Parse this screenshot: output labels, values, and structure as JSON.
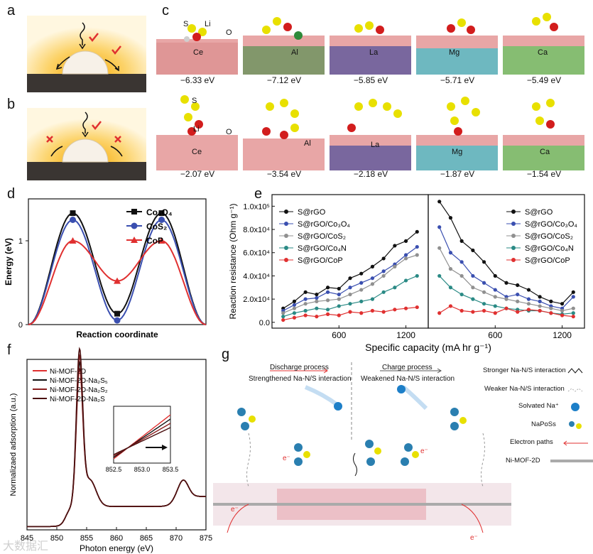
{
  "panels": {
    "a": {
      "letter": "a"
    },
    "b": {
      "letter": "b"
    },
    "c": {
      "letter": "c",
      "row1_labels": [
        "S",
        "Li",
        "O",
        "Ce",
        "Al",
        "La",
        "Mg",
        "Ca"
      ],
      "row1_energies": [
        "−6.33 eV",
        "−7.12 eV",
        "−5.85 eV",
        "−5.71 eV",
        "−5.49 eV"
      ],
      "row2_labels": [
        "S",
        "Li",
        "O",
        "Ce",
        "Al",
        "La",
        "Mg",
        "Ca"
      ],
      "row2_energies": [
        "−2.07 eV",
        "−3.54 eV",
        "−2.18 eV",
        "−1.87 eV",
        "−1.54 eV"
      ]
    },
    "d": {
      "letter": "d"
    },
    "e": {
      "letter": "e"
    },
    "f": {
      "letter": "f"
    },
    "g": {
      "letter": "g",
      "discharge_title": "Discharge process",
      "discharge_sub": "Strengthened Na-N/S interaction",
      "charge_title": "Charge process",
      "charge_sub": "Weakened Na-N/S interaction",
      "legend": [
        "Stronger Na-N/S interaction",
        "Weaker Na-N/S interaction",
        "Solvated Na⁺",
        "NaPoSs",
        "Electron paths",
        "Ni-MOF-2D"
      ],
      "electron": "e⁻"
    }
  },
  "watermark": "大数据汇",
  "chart_data": [
    {
      "id": "d",
      "type": "line",
      "title": "",
      "xlabel": "Reaction  coordinate",
      "ylabel": "Energy (eV)",
      "ylim": [
        0,
        1.5
      ],
      "yticks": [
        "0",
        "1"
      ],
      "legend_position": "top-right",
      "x": [
        0,
        0.25,
        0.5,
        0.75,
        1.0
      ],
      "series": [
        {
          "name": "Co₃O₄",
          "color": "#111111",
          "marker": "square",
          "values": [
            0,
            1.33,
            0.13,
            1.33,
            0
          ]
        },
        {
          "name": "CoS₂",
          "color": "#3a4fb0",
          "marker": "circle",
          "values": [
            0,
            1.25,
            0.05,
            1.25,
            0
          ]
        },
        {
          "name": "CoP",
          "color": "#e03030",
          "marker": "triangle",
          "values": [
            0,
            1.0,
            0.52,
            1.0,
            0
          ]
        }
      ]
    },
    {
      "id": "e-left",
      "type": "line",
      "xlabel": "Specific capacity (mA hr g⁻¹)",
      "ylabel": "Reaction resistance (Ohm g⁻¹)",
      "xlim": [
        0,
        1400
      ],
      "ylim": [
        -5000,
        110000
      ],
      "xticks": [
        "600",
        "1200"
      ],
      "yticks": [
        "0.0",
        "2.0x10⁴",
        "4.0x10⁴",
        "6.0x10⁴",
        "8.0x10⁴",
        "1.0x10⁵"
      ],
      "legend_position": "top-left",
      "x": [
        100,
        200,
        300,
        400,
        500,
        600,
        700,
        800,
        900,
        1000,
        1100,
        1200,
        1300
      ],
      "series": [
        {
          "name": "S@rGO",
          "color": "#111111",
          "values": [
            12000,
            18000,
            26000,
            24000,
            30000,
            29000,
            38000,
            42000,
            48000,
            55000,
            66000,
            70000,
            78000
          ]
        },
        {
          "name": "S@rGO/Co₃O₄",
          "color": "#3a4fb0",
          "values": [
            10000,
            15000,
            20000,
            21000,
            26000,
            24000,
            30000,
            34000,
            38000,
            44000,
            50000,
            58000,
            65000
          ]
        },
        {
          "name": "S@rGO/CoS₂",
          "color": "#909090",
          "values": [
            8000,
            12000,
            16000,
            18000,
            19000,
            20000,
            24000,
            28000,
            33000,
            40000,
            48000,
            55000,
            58000
          ]
        },
        {
          "name": "S@rGO/Co₄N",
          "color": "#2a8a85",
          "values": [
            5000,
            8000,
            10000,
            12000,
            11000,
            14000,
            16000,
            18000,
            20000,
            26000,
            30000,
            36000,
            40000
          ]
        },
        {
          "name": "S@rGO/CoP",
          "color": "#e03030",
          "values": [
            2000,
            4000,
            6000,
            5000,
            7000,
            6000,
            9000,
            8000,
            10000,
            9000,
            11000,
            12000,
            13000
          ]
        }
      ]
    },
    {
      "id": "e-right",
      "type": "line",
      "xlabel": "Specific capacity (mA hr g⁻¹)",
      "xlim": [
        0,
        1400
      ],
      "ylim": [
        -5000,
        110000
      ],
      "xticks": [
        "600",
        "1200"
      ],
      "legend_position": "top-right",
      "x": [
        100,
        200,
        300,
        400,
        500,
        600,
        700,
        800,
        900,
        1000,
        1100,
        1200,
        1300
      ],
      "series": [
        {
          "name": "S@rGO",
          "color": "#111111",
          "values": [
            104000,
            90000,
            70000,
            62000,
            52000,
            40000,
            34000,
            32000,
            28000,
            22000,
            18000,
            16000,
            26000
          ]
        },
        {
          "name": "S@rGO/Co₃O₄",
          "color": "#3a4fb0",
          "values": [
            82000,
            60000,
            52000,
            40000,
            34000,
            28000,
            22000,
            24000,
            20000,
            18000,
            14000,
            12000,
            22000
          ]
        },
        {
          "name": "S@rGO/CoS₂",
          "color": "#909090",
          "values": [
            64000,
            46000,
            40000,
            30000,
            26000,
            22000,
            20000,
            18000,
            16000,
            14000,
            12000,
            10000,
            12000
          ]
        },
        {
          "name": "S@rGO/Co₄N",
          "color": "#2a8a85",
          "values": [
            40000,
            30000,
            24000,
            20000,
            16000,
            14000,
            12000,
            11000,
            10000,
            10000,
            8000,
            7000,
            8000
          ]
        },
        {
          "name": "S@rGO/CoP",
          "color": "#e03030",
          "values": [
            8000,
            14000,
            10000,
            9000,
            10000,
            8000,
            12000,
            9000,
            11000,
            10000,
            8000,
            6000,
            5000
          ]
        }
      ]
    },
    {
      "id": "f",
      "type": "line",
      "xlabel": "Photon energy (eV)",
      "ylabel": "Normalizaed adsorption (a.u.)",
      "xlim": [
        845,
        875
      ],
      "xticks": [
        "845",
        "850",
        "855",
        "860",
        "865",
        "870",
        "875"
      ],
      "legend_position": "top-left",
      "series": [
        {
          "name": "Ni-MOF-2D",
          "color": "#e03030"
        },
        {
          "name": "Ni-MOF-2D-Na₂S₅",
          "color": "#111111"
        },
        {
          "name": "Ni-MOF-2D-Na₂S₂",
          "color": "#8a1e1e"
        },
        {
          "name": "Ni-MOF-2D-Na₂S",
          "color": "#4a1010"
        }
      ],
      "inset": {
        "xticks": [
          "852.5",
          "853.0",
          "853.5"
        ]
      }
    }
  ]
}
